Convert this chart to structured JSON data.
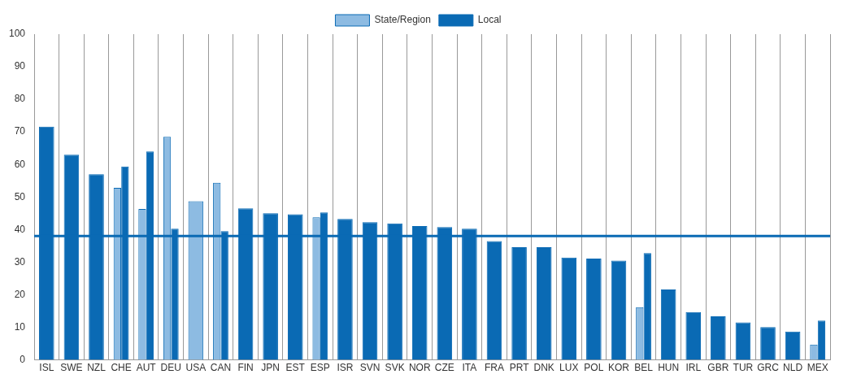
{
  "chart_data": {
    "type": "bar",
    "categories": [
      "ISL",
      "SWE",
      "NZL",
      "CHE",
      "AUT",
      "DEU",
      "USA",
      "CAN",
      "FIN",
      "JPN",
      "EST",
      "ESP",
      "ISR",
      "SVN",
      "SVK",
      "NOR",
      "CZE",
      "ITA",
      "FRA",
      "PRT",
      "DNK",
      "LUX",
      "POL",
      "KOR",
      "BEL",
      "HUN",
      "IRL",
      "GBR",
      "TUR",
      "GRC",
      "NLD",
      "MEX"
    ],
    "series": [
      {
        "name": "State/Region",
        "color": "#8dbbe2",
        "values": [
          null,
          null,
          null,
          52.8,
          46.3,
          68.5,
          48.7,
          54.4,
          null,
          null,
          null,
          43.8,
          null,
          null,
          null,
          null,
          null,
          null,
          null,
          null,
          null,
          null,
          null,
          null,
          16.2,
          null,
          null,
          null,
          null,
          null,
          null,
          4.7
        ]
      },
      {
        "name": "Local",
        "color": "#0a6ab4",
        "values": [
          71.6,
          63,
          57,
          59.4,
          64,
          40.3,
          null,
          39.5,
          46.5,
          45,
          44.7,
          45.3,
          43.3,
          42.3,
          41.9,
          41.1,
          40.8,
          40.3,
          36.5,
          34.6,
          34.6,
          31.4,
          31.1,
          30.5,
          32.8,
          21.6,
          14.7,
          13.4,
          11.5,
          10.1,
          8.7,
          12.1
        ]
      }
    ],
    "ylim": [
      0,
      100
    ],
    "yticks": [
      0,
      10,
      20,
      30,
      40,
      50,
      60,
      70,
      80,
      90,
      100
    ],
    "ref_lines": [
      {
        "axis": "y",
        "value": 38,
        "color": "#0a6ab4"
      }
    ],
    "grid": "x",
    "legend": "top"
  }
}
